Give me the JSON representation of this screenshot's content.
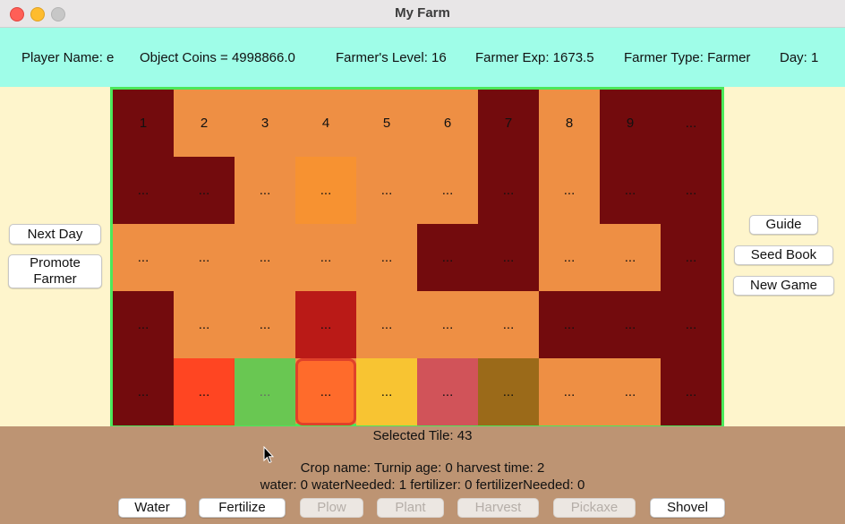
{
  "window": {
    "title": "My Farm"
  },
  "info": {
    "player_name": "Player Name: e",
    "coins": "Object Coins = 4998866.0",
    "level": "Farmer's Level: 16",
    "exp": "Farmer Exp: 1673.5",
    "type": "Farmer Type: Farmer",
    "day": "Day: 1"
  },
  "left_buttons": {
    "next_day": "Next Day",
    "promote_line1": "Promote",
    "promote_line2": "Farmer"
  },
  "right_buttons": {
    "guide": "Guide",
    "seed_book": "Seed Book",
    "new_game": "New Game"
  },
  "colors": {
    "rock": "#730b0d",
    "plowed": "#ee8f44",
    "light_orange": "#f79231",
    "crimson": "#ba1a17",
    "red_orange": "#ff4522",
    "green": "#69c752",
    "orange": "#ff6b2b",
    "yellow": "#f8c432",
    "rose": "#d15359",
    "olive": "#9b6a19",
    "grid_border": "#4be85a",
    "info_bg": "#9ffde8",
    "bottom_bg": "#bd9473"
  },
  "tiles": [
    {
      "label": "1",
      "color": "rock"
    },
    {
      "label": "2",
      "color": "plowed"
    },
    {
      "label": "3",
      "color": "plowed"
    },
    {
      "label": "4",
      "color": "plowed"
    },
    {
      "label": "5",
      "color": "plowed"
    },
    {
      "label": "6",
      "color": "plowed"
    },
    {
      "label": "7",
      "color": "rock"
    },
    {
      "label": "8",
      "color": "plowed"
    },
    {
      "label": "9",
      "color": "rock"
    },
    {
      "label": "...",
      "color": "rock"
    },
    {
      "label": "...",
      "color": "rock"
    },
    {
      "label": "...",
      "color": "rock"
    },
    {
      "label": "...",
      "color": "plowed"
    },
    {
      "label": "...",
      "color": "light_orange"
    },
    {
      "label": "...",
      "color": "plowed"
    },
    {
      "label": "...",
      "color": "plowed"
    },
    {
      "label": "...",
      "color": "rock"
    },
    {
      "label": "...",
      "color": "plowed"
    },
    {
      "label": "...",
      "color": "rock"
    },
    {
      "label": "...",
      "color": "rock"
    },
    {
      "label": "...",
      "color": "plowed"
    },
    {
      "label": "...",
      "color": "plowed"
    },
    {
      "label": "...",
      "color": "plowed"
    },
    {
      "label": "...",
      "color": "plowed"
    },
    {
      "label": "...",
      "color": "plowed"
    },
    {
      "label": "...",
      "color": "rock"
    },
    {
      "label": "...",
      "color": "rock"
    },
    {
      "label": "...",
      "color": "plowed"
    },
    {
      "label": "...",
      "color": "plowed"
    },
    {
      "label": "...",
      "color": "rock"
    },
    {
      "label": "...",
      "color": "rock"
    },
    {
      "label": "...",
      "color": "plowed"
    },
    {
      "label": "...",
      "color": "plowed"
    },
    {
      "label": "...",
      "color": "crimson"
    },
    {
      "label": "...",
      "color": "plowed"
    },
    {
      "label": "...",
      "color": "plowed"
    },
    {
      "label": "...",
      "color": "plowed"
    },
    {
      "label": "...",
      "color": "rock"
    },
    {
      "label": "...",
      "color": "rock"
    },
    {
      "label": "...",
      "color": "rock"
    },
    {
      "label": "...",
      "color": "rock"
    },
    {
      "label": "...",
      "color": "red_orange"
    },
    {
      "label": "...",
      "color": "green"
    },
    {
      "label": "...",
      "color": "orange",
      "selected": true
    },
    {
      "label": "...",
      "color": "yellow"
    },
    {
      "label": "...",
      "color": "rose"
    },
    {
      "label": "...",
      "color": "olive"
    },
    {
      "label": "...",
      "color": "plowed"
    },
    {
      "label": "...",
      "color": "plowed"
    },
    {
      "label": "...",
      "color": "rock"
    }
  ],
  "status": {
    "selected_tile": "Selected Tile: 43",
    "crop_line": "Crop name: Turnip    age: 0    harvest time: 2",
    "needs_line": "water: 0    waterNeeded: 1    fertilizer: 0    fertilizerNeeded: 0"
  },
  "tools": {
    "water": "Water",
    "fertilize": "Fertilize",
    "plow": "Plow",
    "plant": "Plant",
    "harvest": "Harvest",
    "pickaxe": "Pickaxe",
    "shovel": "Shovel"
  }
}
